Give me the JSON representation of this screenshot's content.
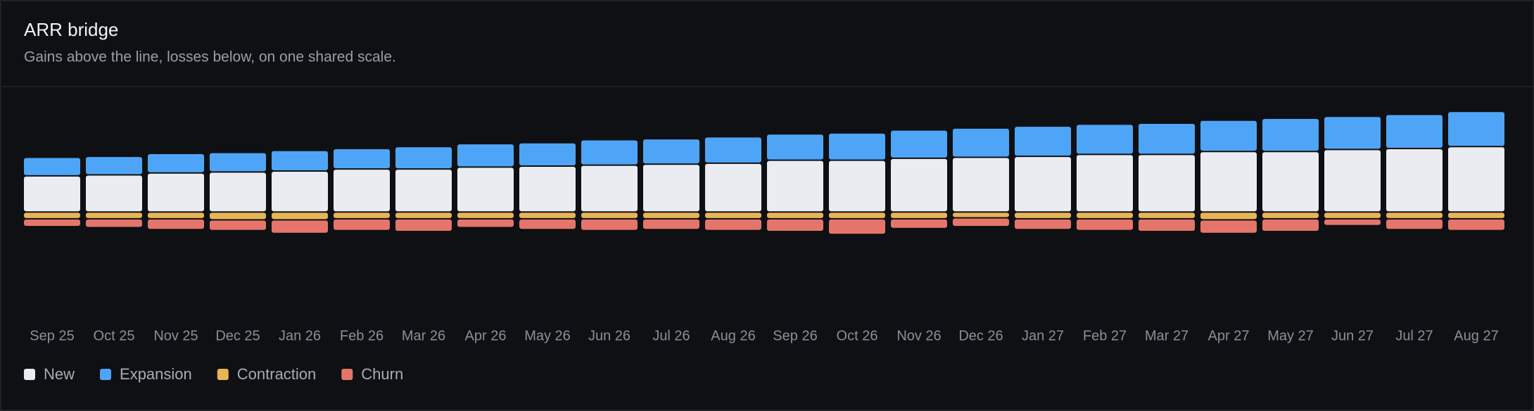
{
  "chart_data": {
    "type": "stacked_bar",
    "title": "ARR bridge",
    "subtitle": "Gains above the line, losses below, on one shared scale.",
    "categories": [
      "Sep 25",
      "Oct 25",
      "Nov 25",
      "Dec 25",
      "Jan 26",
      "Feb 26",
      "Mar 26",
      "Apr 26",
      "May 26",
      "Jun 26",
      "Jul 26",
      "Aug 26",
      "Sep 26",
      "Oct 26",
      "Nov 26",
      "Dec 26",
      "Jan 27",
      "Feb 27",
      "Mar 27",
      "Apr 27",
      "May 27",
      "Jun 27",
      "Jul 27",
      "Aug 27"
    ],
    "series": [
      {
        "name": "New",
        "color": "#ebecf2",
        "values": [
          37,
          38,
          40,
          41,
          42,
          44,
          44,
          46,
          47,
          48,
          49,
          50,
          53,
          53,
          55,
          56,
          57,
          59,
          59,
          62,
          62,
          64,
          65,
          67
        ]
      },
      {
        "name": "Expansion",
        "color": "#4ea5f7",
        "values": [
          19,
          19,
          20,
          20,
          21,
          21,
          23,
          24,
          24,
          26,
          26,
          27,
          27,
          28,
          29,
          30,
          31,
          31,
          32,
          32,
          34,
          34,
          35,
          36
        ]
      },
      {
        "name": "Contraction",
        "color": "#e6b556",
        "values": [
          -7,
          -7,
          -7,
          -8,
          -8,
          -7,
          -7,
          -7,
          -7,
          -7,
          -7,
          -7,
          -7,
          -7,
          -7,
          -6,
          -7,
          -7,
          -7,
          -8,
          -7,
          -7,
          -7,
          -7
        ]
      },
      {
        "name": "Churn",
        "color": "#e5756a",
        "values": [
          -8,
          -9,
          -11,
          -11,
          -14,
          -12,
          -13,
          -9,
          -11,
          -12,
          -11,
          -12,
          -13,
          -16,
          -10,
          -9,
          -11,
          -12,
          -13,
          -14,
          -13,
          -7,
          -11,
          -12
        ]
      }
    ],
    "ylim": [
      -113,
      127
    ]
  }
}
